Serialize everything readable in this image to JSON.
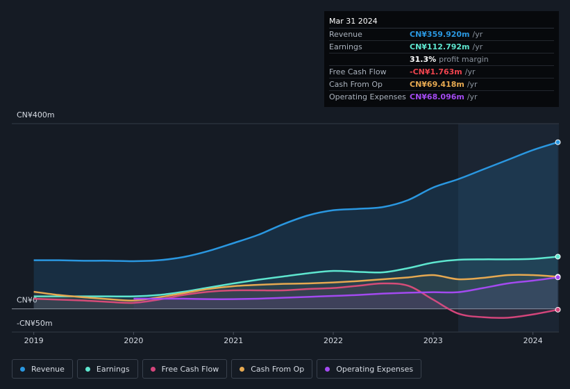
{
  "chart_data": {
    "type": "line",
    "x": [
      2019,
      2019.25,
      2019.5,
      2019.75,
      2020,
      2020.25,
      2020.5,
      2020.75,
      2021,
      2021.25,
      2021.5,
      2021.75,
      2022,
      2022.25,
      2022.5,
      2022.75,
      2023,
      2023.25,
      2023.5,
      2023.75,
      2024,
      2024.25
    ],
    "xlim": [
      2018.78,
      2024.26
    ],
    "xticks": [
      2019,
      2020,
      2021,
      2022,
      2023,
      2024
    ],
    "ylim": [
      -50,
      400
    ],
    "yticks": [
      {
        "value": 400,
        "label": "CN¥400m"
      },
      {
        "value": 0,
        "label": "CN¥0"
      },
      {
        "value": -50,
        "label": "-CN¥50m"
      }
    ],
    "series": [
      {
        "name": "Revenue",
        "color": "#2a97e0",
        "values": [
          105,
          105,
          104,
          104,
          103,
          105,
          112,
          125,
          142,
          160,
          183,
          202,
          213,
          216,
          220,
          235,
          262,
          280,
          301,
          322,
          343,
          359.92
        ]
      },
      {
        "name": "Earnings",
        "color": "#5ee6cf",
        "values": [
          27,
          27,
          27,
          27,
          27,
          30,
          37,
          46,
          55,
          63,
          70,
          77,
          82,
          80,
          79,
          88,
          100,
          106,
          107,
          107,
          108,
          112.792
        ]
      },
      {
        "name": "Free Cash Flow",
        "color": "#d4457b",
        "values": [
          22,
          20,
          18,
          15,
          13,
          20,
          30,
          37,
          40,
          40,
          40,
          43,
          45,
          50,
          55,
          50,
          20,
          -10,
          -18,
          -19,
          -12,
          -1.763
        ]
      },
      {
        "name": "Cash From Op",
        "color": "#e6a951",
        "values": [
          37,
          30,
          25,
          21,
          18,
          25,
          34,
          43,
          49,
          52,
          54,
          55,
          57,
          60,
          64,
          68,
          73,
          64,
          67,
          73,
          73,
          69.418
        ]
      },
      {
        "name": "Operating Expenses",
        "color": "#a34af0",
        "values": [
          null,
          null,
          null,
          null,
          22,
          22,
          22,
          21,
          21,
          22,
          24,
          26,
          28,
          30,
          33,
          35,
          36,
          36,
          45,
          55,
          61,
          68.096
        ]
      }
    ],
    "tooltip": {
      "date": "Mar 31 2024",
      "rows": [
        {
          "label": "Revenue",
          "value": "CN¥359.920m",
          "unit": "/yr",
          "color": "#2a97e0"
        },
        {
          "label": "Earnings",
          "value": "CN¥112.792m",
          "unit": "/yr",
          "color": "#5ee6cf"
        },
        {
          "label": null,
          "value": "31.3%",
          "unit": "profit margin",
          "color": "#ffffff"
        },
        {
          "label": "Free Cash Flow",
          "value": "-CN¥1.763m",
          "unit": "/yr",
          "color": "#f0444e"
        },
        {
          "label": "Cash From Op",
          "value": "CN¥69.418m",
          "unit": "/yr",
          "color": "#e6a951"
        },
        {
          "label": "Operating Expenses",
          "value": "CN¥68.096m",
          "unit": "/yr",
          "color": "#a34af0"
        }
      ]
    }
  }
}
